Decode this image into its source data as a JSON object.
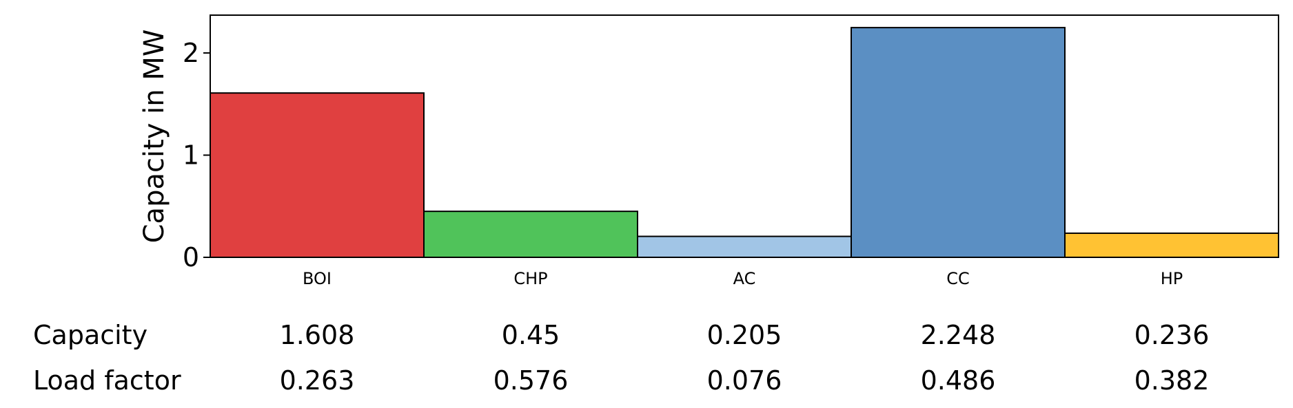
{
  "chart_data": {
    "type": "bar",
    "categories": [
      "BOI",
      "CHP",
      "AC",
      "CC",
      "HP"
    ],
    "values": [
      1.608,
      0.45,
      0.205,
      2.248,
      0.236
    ],
    "ylabel": "Capacity in MW",
    "xlabel": "",
    "ylim": [
      0,
      2.37
    ],
    "yticks": [
      "0",
      "1",
      "2"
    ],
    "grid": false,
    "bar_colors": [
      "#e04040",
      "#50c35a",
      "#a1c5e6",
      "#5b8fc3",
      "#ffc233"
    ]
  },
  "table": {
    "rows": [
      {
        "label": "Capacity",
        "values": [
          "1.608",
          "0.45",
          "0.205",
          "2.248",
          "0.236"
        ]
      },
      {
        "label": "Load factor",
        "values": [
          "0.263",
          "0.576",
          "0.076",
          "0.486",
          "0.382"
        ]
      }
    ]
  }
}
